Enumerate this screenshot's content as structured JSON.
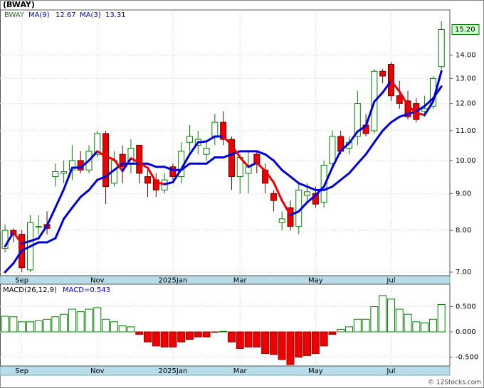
{
  "chart_data": [
    {
      "type": "candlestick",
      "title": "(BWAY)",
      "symbol": "BWAY",
      "log_scale": true,
      "grid": true,
      "xlim": [
        -0.6,
        53.0
      ],
      "xticks": [
        {
          "value": 2,
          "label": "Sep"
        },
        {
          "value": 11,
          "label": "Nov"
        },
        {
          "value": 20,
          "label": "2025Jan"
        },
        {
          "value": 28,
          "label": "Mar"
        },
        {
          "value": 37,
          "label": "May"
        },
        {
          "value": 46,
          "label": "Jul"
        }
      ],
      "ylim": [
        6.92,
        16.18
      ],
      "yticks": [
        {
          "value": 7,
          "label": "7.00"
        },
        {
          "value": 8,
          "label": "8.00"
        },
        {
          "value": 9,
          "label": "9.00"
        },
        {
          "value": 10,
          "label": "10.00"
        },
        {
          "value": 11,
          "label": "11.00"
        },
        {
          "value": 12,
          "label": "12.00"
        },
        {
          "value": 13,
          "label": "13.00"
        },
        {
          "value": 14,
          "label": "14.00"
        }
      ],
      "up_color": "#008000",
      "down_color": "#ee0000",
      "open": [
        7.55,
        8.0,
        7.9,
        7.05,
        8.1,
        8.15,
        9.5,
        9.6,
        9.7,
        10.0,
        9.7,
        10.2,
        10.9,
        9.3,
        10.2,
        9.9,
        10.5,
        9.5,
        9.4,
        9.1,
        9.8,
        9.5,
        10.6,
        10.5,
        10.2,
        10.8,
        11.3,
        10.7,
        9.5,
        9.6,
        10.2,
        9.7,
        9.0,
        8.2,
        8.6,
        8.1,
        8.95,
        9.0,
        8.75,
        9.9,
        10.8,
        10.4,
        10.8,
        11.2,
        11.0,
        13.3,
        13.6,
        12.3,
        12.1,
        12.0,
        11.7,
        11.9,
        13.5
      ],
      "high": [
        8.15,
        8.05,
        8.0,
        8.4,
        8.4,
        8.5,
        9.9,
        10.0,
        10.5,
        10.3,
        10.5,
        11.0,
        11.0,
        10.3,
        10.5,
        10.7,
        10.5,
        9.7,
        9.6,
        9.6,
        9.9,
        10.6,
        11.2,
        11.0,
        10.6,
        11.6,
        11.7,
        10.8,
        10.2,
        10.3,
        10.3,
        9.9,
        9.1,
        8.5,
        8.8,
        9.3,
        9.3,
        9.2,
        10.0,
        11.0,
        11.0,
        10.8,
        12.5,
        11.6,
        13.4,
        13.4,
        13.7,
        12.9,
        12.5,
        12.2,
        12.3,
        13.1,
        15.6
      ],
      "low": [
        7.45,
        7.7,
        7.0,
        7.0,
        7.9,
        7.9,
        9.2,
        9.3,
        9.4,
        9.6,
        9.6,
        10.1,
        8.7,
        9.2,
        9.3,
        9.6,
        9.3,
        8.9,
        8.9,
        9.0,
        9.4,
        9.3,
        10.3,
        10.2,
        10.0,
        10.5,
        10.5,
        9.1,
        9.0,
        9.0,
        9.6,
        9.0,
        8.5,
        8.0,
        8.0,
        7.9,
        8.8,
        8.6,
        8.6,
        9.8,
        10.2,
        10.2,
        10.5,
        10.8,
        10.9,
        12.8,
        12.1,
        11.8,
        11.4,
        11.3,
        11.5,
        11.8,
        13.4
      ],
      "close": [
        8.0,
        7.9,
        7.1,
        8.2,
        8.1,
        8.05,
        9.65,
        9.65,
        10.0,
        9.7,
        10.3,
        10.9,
        9.2,
        10.0,
        9.8,
        10.4,
        9.6,
        9.3,
        9.1,
        9.4,
        9.5,
        10.3,
        10.8,
        10.7,
        10.4,
        11.3,
        10.7,
        9.5,
        10.1,
        9.8,
        9.9,
        9.3,
        8.8,
        8.3,
        8.1,
        9.1,
        9.05,
        8.7,
        9.85,
        10.8,
        10.3,
        10.6,
        12.0,
        10.9,
        13.3,
        13.1,
        12.3,
        12.0,
        11.5,
        11.4,
        11.8,
        13.0,
        15.2
      ],
      "close_label": "15.20",
      "series": [
        {
          "name": "MA(9)",
          "value_label": "12.67",
          "color": "#0000dd",
          "values": [
            7.0,
            7.2,
            7.5,
            7.6,
            7.7,
            7.7,
            7.8,
            8.3,
            8.6,
            8.9,
            9.1,
            9.4,
            9.5,
            9.7,
            9.9,
            9.9,
            9.9,
            9.9,
            9.8,
            9.8,
            9.7,
            9.7,
            9.9,
            9.9,
            9.9,
            10.1,
            10.1,
            10.2,
            10.3,
            10.3,
            10.3,
            10.2,
            10.0,
            9.7,
            9.5,
            9.3,
            9.2,
            9.1,
            9.1,
            9.2,
            9.4,
            9.6,
            9.9,
            10.2,
            10.6,
            11.0,
            11.3,
            11.5,
            11.6,
            11.7,
            11.9,
            12.2,
            12.67
          ]
        },
        {
          "name": "MA(3)",
          "value_label": "13.31",
          "color": "#0000dd",
          "down_color": "#ee0000",
          "values": [
            7.6,
            7.95,
            7.67,
            7.73,
            7.8,
            8.12,
            8.6,
            9.12,
            9.77,
            9.78,
            10.0,
            10.3,
            10.13,
            10.03,
            9.67,
            10.07,
            9.93,
            9.77,
            9.33,
            9.27,
            9.33,
            9.73,
            10.2,
            10.6,
            10.63,
            10.8,
            10.8,
            10.5,
            10.1,
            9.8,
            9.93,
            9.67,
            9.33,
            8.8,
            8.4,
            8.5,
            8.75,
            8.95,
            9.2,
            9.78,
            10.32,
            10.57,
            10.97,
            11.17,
            12.07,
            12.43,
            12.9,
            12.47,
            11.93,
            11.63,
            11.57,
            12.07,
            13.31
          ]
        }
      ]
    },
    {
      "type": "bar",
      "name": "MACD(26,12,9)",
      "value_label": "MACD=0.543",
      "grid": true,
      "up_color": "#008000",
      "down_color": "#ee0000",
      "ylim": [
        -0.676,
        0.944
      ],
      "yticks": [
        {
          "value": 0.5,
          "label": "0.500"
        },
        {
          "value": 0,
          "label": "0.000"
        },
        {
          "value": -0.5,
          "label": "-0.500"
        }
      ],
      "values": [
        0.31,
        0.3,
        0.2,
        0.2,
        0.22,
        0.25,
        0.3,
        0.35,
        0.45,
        0.4,
        0.45,
        0.48,
        0.25,
        0.2,
        0.12,
        0.1,
        -0.05,
        -0.2,
        -0.28,
        -0.3,
        -0.3,
        -0.2,
        -0.15,
        -0.1,
        -0.1,
        -0.01,
        0.01,
        -0.2,
        -0.33,
        -0.3,
        -0.3,
        -0.43,
        -0.45,
        -0.55,
        -0.65,
        -0.5,
        -0.47,
        -0.43,
        -0.28,
        -0.05,
        0.05,
        0.1,
        0.25,
        0.25,
        0.5,
        0.72,
        0.65,
        0.45,
        0.35,
        0.2,
        0.18,
        0.25,
        0.543
      ]
    },
    {
      "type": "footer",
      "text": "© 12Stocks.com"
    }
  ]
}
